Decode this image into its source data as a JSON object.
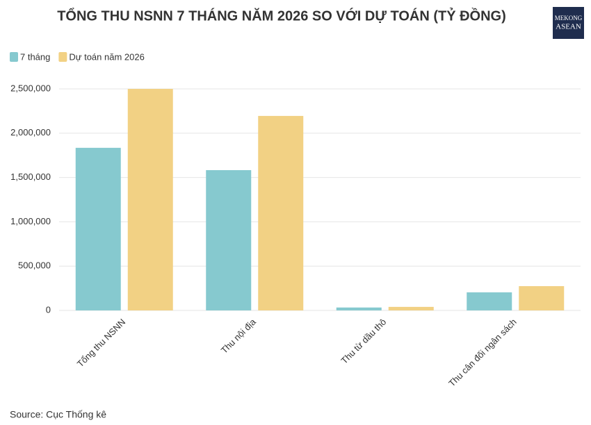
{
  "chart_data": {
    "type": "bar",
    "title": "TỔNG THU NSNN 7 THÁNG NĂM 2026 SO VỚI DỰ TOÁN (TỶ ĐỒNG)",
    "categories": [
      "Tổng thu NSNN",
      "Thu nội địa",
      "Thu từ dầu thô",
      "Thu cân đối ngân sách"
    ],
    "series": [
      {
        "name": "7 tháng",
        "color": "#86c9cf",
        "values": [
          1835000,
          1583000,
          33000,
          204000
        ]
      },
      {
        "name": "Dự toán năm 2026",
        "color": "#f2d184",
        "values": [
          2500000,
          2195000,
          40000,
          274000
        ]
      }
    ],
    "ylim": [
      0,
      2500000
    ],
    "yticks": [
      0,
      {
        "value": 500000,
        "label": "500,000"
      },
      {
        "value": 1000000,
        "label": "1,000,000"
      },
      {
        "value": 1500000,
        "label": "1,500,000"
      },
      {
        "value": 2000000,
        "label": "2,000,000"
      },
      {
        "value": 2500000,
        "label": "2,500,000"
      }
    ],
    "grid": true,
    "legend": "top-left",
    "source": "Source: Cục Thống kê",
    "logo": [
      "MEKONG",
      "ASEAN"
    ]
  }
}
